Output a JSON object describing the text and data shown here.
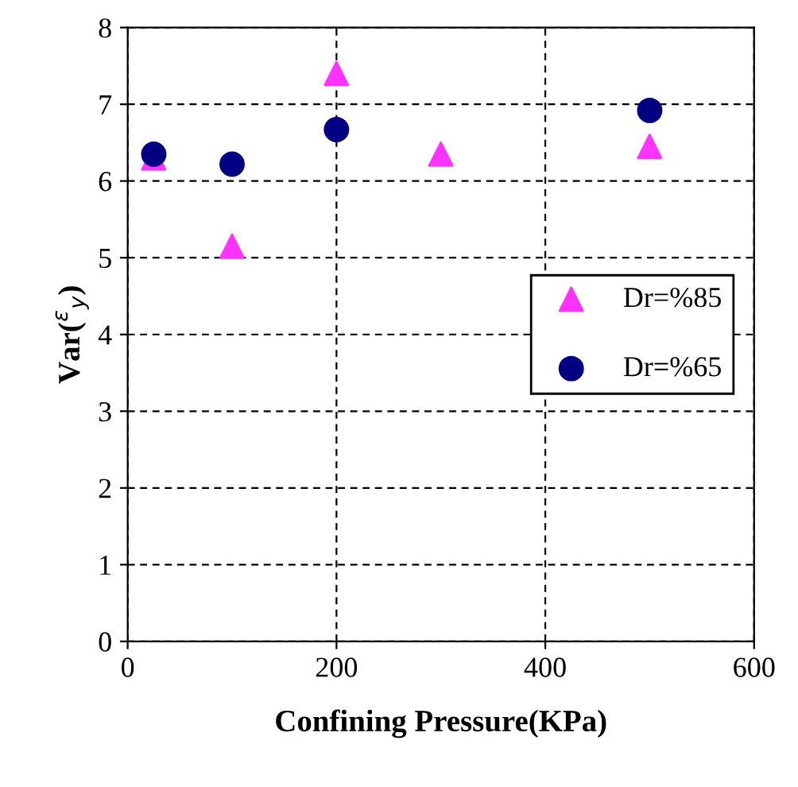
{
  "chart_data": {
    "type": "scatter",
    "xlabel": "Confining Pressure(KPa)",
    "ylabel": "Var($^{ε}$$_{y}$)",
    "xlim": [
      0,
      600
    ],
    "xticks": [
      0,
      200,
      400,
      600
    ],
    "ylim": [
      0,
      8
    ],
    "yticks": [
      0,
      1,
      2,
      3,
      4,
      5,
      6,
      7,
      8
    ],
    "grid": true,
    "legend": "right",
    "series": [
      {
        "name": "Dr=%85",
        "color": "#ff33ff",
        "marker": "triangle",
        "x": [
          25,
          100,
          200,
          300,
          500
        ],
        "values": [
          6.3,
          5.15,
          7.4,
          6.35,
          6.45
        ]
      },
      {
        "name": "Dr=%65",
        "color": "#000080",
        "marker": "circle",
        "x": [
          25,
          100,
          200,
          500
        ],
        "values": [
          6.35,
          6.22,
          6.67,
          6.92
        ]
      }
    ]
  }
}
